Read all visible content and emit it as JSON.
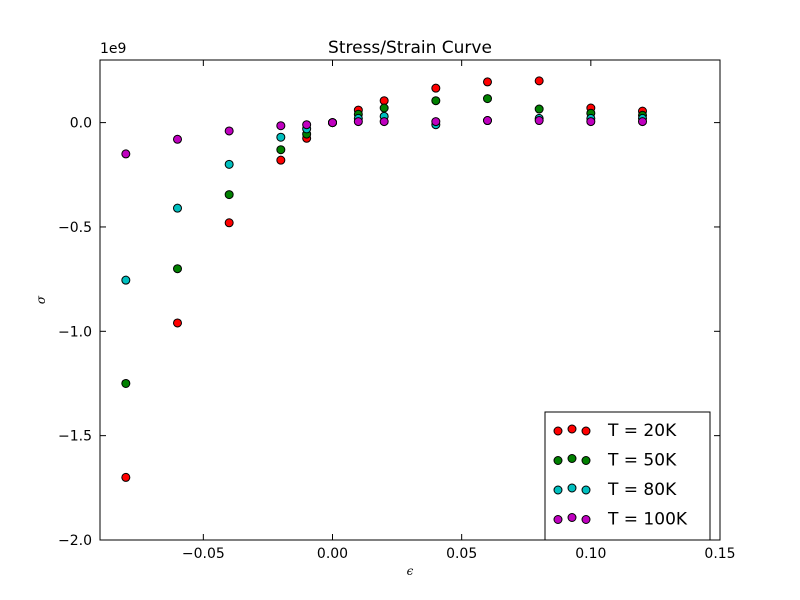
{
  "chart_data": {
    "type": "scatter",
    "title": "Stress/Strain Curve",
    "xlabel": "ϵ",
    "ylabel": "σ",
    "y_offset_label": "1e9",
    "xlim": [
      -0.09,
      0.15
    ],
    "ylim": [
      -2.0,
      0.3
    ],
    "y_scale_factor": 1000000000,
    "x_ticks": [
      -0.05,
      0.0,
      0.05,
      0.1,
      0.15
    ],
    "x_tick_labels": [
      "−0.05",
      "0.00",
      "0.05",
      "0.10",
      "0.15"
    ],
    "y_ticks": [
      -2.0,
      -1.5,
      -1.0,
      -0.5,
      0.0
    ],
    "y_tick_labels": [
      "−2.0",
      "−1.5",
      "−1.0",
      "−0.5",
      "0.0"
    ],
    "grid": false,
    "legend_position": "bottom-right",
    "series": [
      {
        "name": "T = 20K",
        "color": "#ff0000",
        "points": [
          [
            -0.08,
            -1.7
          ],
          [
            -0.06,
            -0.96
          ],
          [
            -0.04,
            -0.48
          ],
          [
            -0.02,
            -0.18
          ],
          [
            -0.01,
            -0.075
          ],
          [
            0.0,
            0.0
          ],
          [
            0.01,
            0.06
          ],
          [
            0.02,
            0.105
          ],
          [
            0.04,
            0.165
          ],
          [
            0.06,
            0.195
          ],
          [
            0.08,
            0.2
          ],
          [
            0.1,
            0.07
          ],
          [
            0.12,
            0.055
          ]
        ]
      },
      {
        "name": "T = 50K",
        "color": "#008000",
        "points": [
          [
            -0.08,
            -1.25
          ],
          [
            -0.06,
            -0.7
          ],
          [
            -0.04,
            -0.345
          ],
          [
            -0.02,
            -0.13
          ],
          [
            -0.01,
            -0.055
          ],
          [
            0.0,
            0.0
          ],
          [
            0.01,
            0.04
          ],
          [
            0.02,
            0.07
          ],
          [
            0.04,
            0.105
          ],
          [
            0.06,
            0.115
          ],
          [
            0.08,
            0.065
          ],
          [
            0.1,
            0.045
          ],
          [
            0.12,
            0.035
          ]
        ]
      },
      {
        "name": "T = 80K",
        "color": "#00bfbf",
        "points": [
          [
            -0.08,
            -0.755
          ],
          [
            -0.06,
            -0.41
          ],
          [
            -0.04,
            -0.2
          ],
          [
            -0.02,
            -0.07
          ],
          [
            -0.01,
            -0.03
          ],
          [
            0.0,
            0.0
          ],
          [
            0.01,
            0.02
          ],
          [
            0.02,
            0.03
          ],
          [
            0.04,
            -0.01
          ],
          [
            0.06,
            0.01
          ],
          [
            0.08,
            0.02
          ],
          [
            0.1,
            0.02
          ],
          [
            0.12,
            0.02
          ]
        ]
      },
      {
        "name": "T = 100K",
        "color": "#bf00bf",
        "points": [
          [
            -0.08,
            -0.15
          ],
          [
            -0.06,
            -0.08
          ],
          [
            -0.04,
            -0.04
          ],
          [
            -0.02,
            -0.015
          ],
          [
            -0.01,
            -0.01
          ],
          [
            0.0,
            0.0
          ],
          [
            0.01,
            0.005
          ],
          [
            0.02,
            0.005
          ],
          [
            0.04,
            0.005
          ],
          [
            0.06,
            0.01
          ],
          [
            0.08,
            0.01
          ],
          [
            0.1,
            0.005
          ],
          [
            0.12,
            0.005
          ]
        ]
      }
    ]
  }
}
